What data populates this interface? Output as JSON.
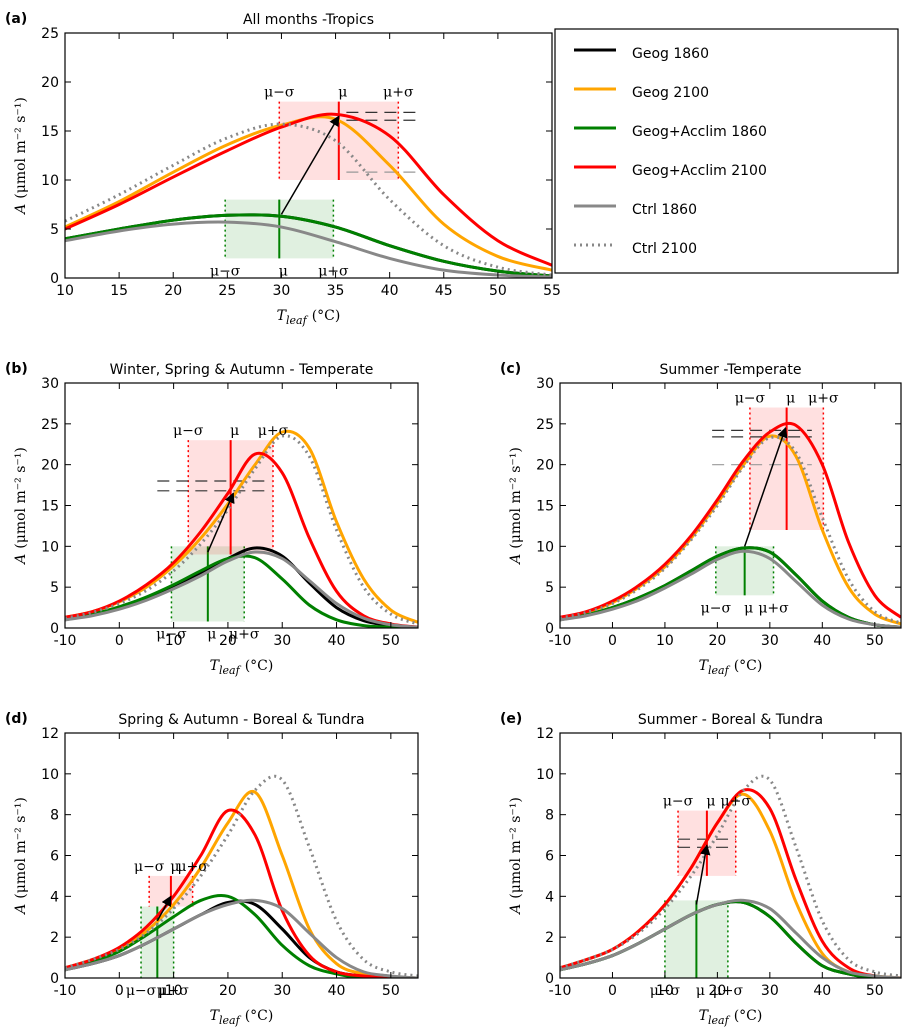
{
  "chart_data": [
    {
      "type": "line",
      "panel_label": "(a)",
      "title": "All months -Tropics",
      "xlabel": [
        "T",
        "leaf",
        "(°C)"
      ],
      "ylabel": [
        "A",
        "(μmol m⁻² s⁻¹)"
      ],
      "x": [
        10,
        15,
        20,
        25,
        30,
        35,
        40,
        45,
        50,
        55
      ],
      "xlim": [
        10,
        55
      ],
      "xticks": [
        10,
        15,
        20,
        25,
        30,
        35,
        40,
        45,
        50,
        55
      ],
      "ylim": [
        0,
        25
      ],
      "yticks": [
        0,
        5,
        10,
        15,
        20,
        25
      ],
      "legend": true,
      "series": [
        {
          "name": "Geog 1860",
          "color": "#000000",
          "style": "solid",
          "values": [
            4,
            5,
            5.9,
            6.4,
            6.3,
            5.2,
            3.3,
            1.7,
            0.7,
            0.2
          ]
        },
        {
          "name": "Geog 2100",
          "color": "#ffa500",
          "style": "solid",
          "values": [
            5.2,
            7.8,
            10.8,
            13.6,
            15.6,
            16.2,
            11.5,
            5.5,
            2.2,
            0.8
          ]
        },
        {
          "name": "Geog+Acclim 1860",
          "color": "#008000",
          "style": "solid",
          "values": [
            4,
            5,
            5.9,
            6.4,
            6.3,
            5.2,
            3.3,
            1.7,
            0.7,
            0.2
          ]
        },
        {
          "name": "Geog+Acclim 2100",
          "color": "#ff0000",
          "style": "solid",
          "values": [
            5,
            7.5,
            10.3,
            13,
            15.4,
            16.7,
            14.5,
            8.5,
            3.8,
            1.3
          ]
        },
        {
          "name": "Ctrl 1860",
          "color": "#888888",
          "style": "solid",
          "values": [
            3.8,
            4.8,
            5.5,
            5.7,
            5.2,
            3.7,
            2,
            0.8,
            0.3,
            0.1
          ]
        },
        {
          "name": "Ctrl 2100",
          "color": "#888888",
          "style": "dotted",
          "values": [
            5.8,
            8.5,
            11.5,
            14.3,
            15.7,
            14,
            8,
            3.3,
            1.1,
            0.3
          ]
        }
      ],
      "boxes": [
        {
          "color": "#008000",
          "mu": 29.8,
          "sigma": 5,
          "ylim": [
            2,
            8
          ]
        },
        {
          "color": "#ff0000",
          "mu": 35.3,
          "sigma": 5.5,
          "ylim": [
            10,
            18
          ]
        }
      ],
      "box_labels": [
        "μ−σ",
        "μ",
        "μ+σ"
      ],
      "ref_lines": [
        {
          "y": 16.9,
          "x": [
            36,
            43
          ],
          "color": "#333333"
        },
        {
          "y": 16.1,
          "x": [
            36,
            43
          ],
          "color": "#333333"
        },
        {
          "y": 10.8,
          "x": [
            36,
            43
          ],
          "color": "#999999"
        }
      ],
      "arrow": {
        "from": [
          30,
          6.5
        ],
        "to": [
          35.3,
          16.5
        ]
      }
    },
    {
      "type": "line",
      "panel_label": "(b)",
      "title": "Winter, Spring & Autumn - Temperate",
      "xlabel": [
        "T",
        "leaf",
        "(°C)"
      ],
      "ylabel": [
        "A",
        "(μmol m⁻² s⁻¹)"
      ],
      "x": [
        -10,
        -5,
        0,
        5,
        10,
        15,
        20,
        25,
        30,
        35,
        40,
        45,
        50,
        55
      ],
      "xlim": [
        -10,
        55
      ],
      "xticks": [
        -10,
        0,
        10,
        20,
        30,
        40,
        50
      ],
      "ylim": [
        0,
        30
      ],
      "yticks": [
        0,
        5,
        10,
        15,
        20,
        25,
        30
      ],
      "series": [
        {
          "name": "Geog 1860",
          "color": "#000000",
          "style": "solid",
          "values": [
            1,
            1.6,
            2.5,
            3.6,
            5,
            6.7,
            8.5,
            9.8,
            8.8,
            5.5,
            2.5,
            0.9,
            0.3,
            0.1
          ]
        },
        {
          "name": "Geog 2100",
          "color": "#ffa500",
          "style": "solid",
          "values": [
            1.3,
            2,
            3.2,
            5,
            7.6,
            11,
            15.2,
            20,
            24,
            22,
            13,
            6,
            2.2,
            0.7
          ]
        },
        {
          "name": "Geog+Acclim 1860",
          "color": "#008000",
          "style": "solid",
          "values": [
            1.1,
            1.7,
            2.6,
            3.8,
            5.3,
            7,
            8.5,
            8.6,
            6,
            2.8,
            1,
            0.3,
            0.1,
            0
          ]
        },
        {
          "name": "Geog+Acclim 2100",
          "color": "#ff0000",
          "style": "solid",
          "values": [
            1.3,
            2,
            3.3,
            5.3,
            8,
            11.8,
            16.5,
            21.3,
            19,
            11,
            4.5,
            1.5,
            0.5,
            0.1
          ]
        },
        {
          "name": "Ctrl 1860",
          "color": "#888888",
          "style": "solid",
          "values": [
            1,
            1.5,
            2.3,
            3.4,
            4.8,
            6.4,
            8.2,
            9.3,
            8.5,
            5.8,
            3,
            1.2,
            0.4,
            0.1
          ]
        },
        {
          "name": "Ctrl 2100",
          "color": "#888888",
          "style": "dotted",
          "values": [
            1.2,
            1.9,
            3,
            4.6,
            7,
            10.3,
            14.5,
            19.5,
            23.5,
            21,
            12,
            5,
            1.7,
            0.5
          ]
        }
      ],
      "boxes": [
        {
          "color": "#008000",
          "mu": 16.3,
          "sigma": 6.7,
          "ylim": [
            0.8,
            10
          ]
        },
        {
          "color": "#ff0000",
          "mu": 20.5,
          "sigma": 7.8,
          "ylim": [
            9,
            23
          ]
        }
      ],
      "box_labels": [
        "μ−σ",
        "μ",
        "μ+σ"
      ],
      "ref_lines": [
        {
          "y": 18,
          "x": [
            7,
            28
          ],
          "color": "#333333"
        },
        {
          "y": 16.8,
          "x": [
            7,
            28
          ],
          "color": "#333333"
        }
      ],
      "arrow": {
        "from": [
          16.3,
          9.3
        ],
        "to": [
          21,
          16.5
        ]
      }
    },
    {
      "type": "line",
      "panel_label": "(c)",
      "title": "Summer -Temperate",
      "xlabel": [
        "T",
        "leaf",
        "(°C)"
      ],
      "ylabel": [
        "A",
        "(μmol m⁻² s⁻¹)"
      ],
      "x": [
        -10,
        -5,
        0,
        5,
        10,
        15,
        20,
        25,
        30,
        35,
        40,
        45,
        50,
        55
      ],
      "xlim": [
        -10,
        55
      ],
      "xticks": [
        -10,
        0,
        10,
        20,
        30,
        40,
        50
      ],
      "ylim": [
        0,
        30
      ],
      "yticks": [
        0,
        5,
        10,
        15,
        20,
        25,
        30
      ],
      "series": [
        {
          "name": "Geog 1860",
          "color": "#000000",
          "style": "solid",
          "values": [
            1,
            1.6,
            2.5,
            3.7,
            5.2,
            7,
            8.8,
            9.8,
            9.3,
            6.5,
            3.3,
            1.3,
            0.4,
            0.1
          ]
        },
        {
          "name": "Geog 2100",
          "color": "#ffa500",
          "style": "solid",
          "values": [
            1.2,
            1.9,
            3.1,
            5,
            7.5,
            11,
            15.3,
            20,
            23.5,
            21,
            12,
            5,
            1.7,
            0.5
          ]
        },
        {
          "name": "Geog+Acclim 1860",
          "color": "#008000",
          "style": "solid",
          "values": [
            1,
            1.6,
            2.5,
            3.7,
            5.2,
            7,
            8.8,
            9.8,
            9.3,
            6.5,
            3.3,
            1.3,
            0.4,
            0.1
          ]
        },
        {
          "name": "Geog+Acclim 2100",
          "color": "#ff0000",
          "style": "solid",
          "values": [
            1.3,
            2,
            3.3,
            5.2,
            7.8,
            11.3,
            15.7,
            20.5,
            24,
            24.8,
            20,
            10.5,
            4,
            1.3
          ]
        },
        {
          "name": "Ctrl 1860",
          "color": "#888888",
          "style": "solid",
          "values": [
            1,
            1.5,
            2.3,
            3.4,
            4.9,
            6.6,
            8.4,
            9.4,
            8.5,
            5.7,
            2.8,
            1.1,
            0.4,
            0.1
          ]
        },
        {
          "name": "Ctrl 2100",
          "color": "#888888",
          "style": "dotted",
          "values": [
            1.2,
            1.9,
            3,
            4.8,
            7.3,
            10.8,
            15,
            19.8,
            23.3,
            21.5,
            13.5,
            6,
            2,
            0.6
          ]
        }
      ],
      "boxes": [
        {
          "color": "#008000",
          "mu": 25.2,
          "sigma": 5.5,
          "ylim": [
            4,
            10
          ]
        },
        {
          "color": "#ff0000",
          "mu": 33.2,
          "sigma": 7,
          "ylim": [
            12,
            27
          ]
        }
      ],
      "box_labels": [
        "μ−σ",
        "μ",
        "μ+σ"
      ],
      "ref_lines": [
        {
          "y": 24.2,
          "x": [
            19,
            38
          ],
          "color": "#333333"
        },
        {
          "y": 23.4,
          "x": [
            19,
            38
          ],
          "color": "#333333"
        },
        {
          "y": 20,
          "x": [
            19,
            38
          ],
          "color": "#999999"
        }
      ],
      "arrow": {
        "from": [
          25.2,
          10
        ],
        "to": [
          33,
          24.5
        ]
      }
    },
    {
      "type": "line",
      "panel_label": "(d)",
      "title": "Spring & Autumn - Boreal & Tundra",
      "xlabel": [
        "T",
        "leaf",
        "(°C)"
      ],
      "ylabel": [
        "A",
        "(μmol m⁻² s⁻¹)"
      ],
      "x": [
        -10,
        -5,
        0,
        5,
        10,
        15,
        20,
        25,
        30,
        35,
        40,
        45,
        50,
        55
      ],
      "xlim": [
        -10,
        55
      ],
      "xticks": [
        -10,
        0,
        10,
        20,
        30,
        40,
        50
      ],
      "ylim": [
        0,
        12
      ],
      "yticks": [
        0,
        2,
        4,
        6,
        8,
        10,
        12
      ],
      "series": [
        {
          "name": "Geog 1860",
          "color": "#000000",
          "style": "solid",
          "values": [
            0.4,
            0.7,
            1.1,
            1.7,
            2.4,
            3.1,
            3.7,
            3.6,
            2.4,
            1,
            0.3,
            0.1,
            0,
            0
          ]
        },
        {
          "name": "Geog 2100",
          "color": "#ffa500",
          "style": "solid",
          "values": [
            0.5,
            0.9,
            1.4,
            2.3,
            3.6,
            5.4,
            7.6,
            9.1,
            6,
            2.4,
            0.7,
            0.2,
            0.05,
            0
          ]
        },
        {
          "name": "Geog+Acclim 1860",
          "color": "#008000",
          "style": "solid",
          "values": [
            0.4,
            0.8,
            1.3,
            2.1,
            3,
            3.8,
            4,
            3.1,
            1.6,
            0.6,
            0.2,
            0,
            0,
            0
          ]
        },
        {
          "name": "Geog+Acclim 2100",
          "color": "#ff0000",
          "style": "solid",
          "values": [
            0.5,
            0.9,
            1.5,
            2.5,
            4,
            6,
            8.2,
            7,
            3.3,
            1.1,
            0.3,
            0.1,
            0,
            0
          ]
        },
        {
          "name": "Ctrl 1860",
          "color": "#888888",
          "style": "solid",
          "values": [
            0.4,
            0.7,
            1.1,
            1.7,
            2.4,
            3.1,
            3.6,
            3.8,
            3.4,
            2.2,
            1,
            0.3,
            0.1,
            0
          ]
        },
        {
          "name": "Ctrl 2100",
          "color": "#888888",
          "style": "dotted",
          "values": [
            0.5,
            0.9,
            1.4,
            2.2,
            3.4,
            5,
            7,
            9.2,
            9.7,
            6.4,
            2.8,
            0.9,
            0.3,
            0.1
          ]
        }
      ],
      "boxes": [
        {
          "color": "#008000",
          "mu": 7,
          "sigma": 3,
          "ylim": [
            0,
            3.5
          ]
        },
        {
          "color": "#ff0000",
          "mu": 9.5,
          "sigma": 4,
          "ylim": [
            3.5,
            5
          ]
        }
      ],
      "box_labels": [
        "μ−σ",
        "μ",
        "μ+σ"
      ],
      "ref_lines": [],
      "arrow": {
        "from": [
          7,
          2.8
        ],
        "to": [
          9.5,
          4
        ]
      }
    },
    {
      "type": "line",
      "panel_label": "(e)",
      "title": "Summer - Boreal & Tundra",
      "xlabel": [
        "T",
        "leaf",
        "(°C)"
      ],
      "ylabel": [
        "A",
        "(μmol m⁻² s⁻¹)"
      ],
      "x": [
        -10,
        -5,
        0,
        5,
        10,
        15,
        20,
        25,
        30,
        35,
        40,
        45,
        50,
        55
      ],
      "xlim": [
        -10,
        55
      ],
      "xticks": [
        -10,
        0,
        10,
        20,
        30,
        40,
        50
      ],
      "ylim": [
        0,
        12
      ],
      "yticks": [
        0,
        2,
        4,
        6,
        8,
        10,
        12
      ],
      "series": [
        {
          "name": "Geog 1860",
          "color": "#000000",
          "style": "solid",
          "values": [
            0.4,
            0.7,
            1.1,
            1.7,
            2.4,
            3.1,
            3.6,
            3.7,
            3,
            1.7,
            0.6,
            0.2,
            0,
            0
          ]
        },
        {
          "name": "Geog 2100",
          "color": "#ffa500",
          "style": "solid",
          "values": [
            0.5,
            0.9,
            1.4,
            2.3,
            3.6,
            5.4,
            7.6,
            9,
            7.2,
            3.7,
            1.2,
            0.3,
            0.1,
            0
          ]
        },
        {
          "name": "Geog+Acclim 1860",
          "color": "#008000",
          "style": "solid",
          "values": [
            0.4,
            0.7,
            1.1,
            1.7,
            2.4,
            3.1,
            3.6,
            3.7,
            3,
            1.7,
            0.6,
            0.2,
            0,
            0
          ]
        },
        {
          "name": "Geog+Acclim 2100",
          "color": "#ff0000",
          "style": "solid",
          "values": [
            0.5,
            0.9,
            1.4,
            2.3,
            3.6,
            5.4,
            7.6,
            9.2,
            8.3,
            4.8,
            1.8,
            0.5,
            0.1,
            0
          ]
        },
        {
          "name": "Ctrl 1860",
          "color": "#888888",
          "style": "solid",
          "values": [
            0.4,
            0.7,
            1.1,
            1.7,
            2.4,
            3.1,
            3.6,
            3.8,
            3.4,
            2.2,
            1,
            0.3,
            0.1,
            0
          ]
        },
        {
          "name": "Ctrl 2100",
          "color": "#888888",
          "style": "dotted",
          "values": [
            0.5,
            0.9,
            1.4,
            2.2,
            3.4,
            5,
            7,
            9.2,
            9.7,
            6.4,
            2.8,
            0.9,
            0.3,
            0.1
          ]
        }
      ],
      "boxes": [
        {
          "color": "#008000",
          "mu": 16,
          "sigma": 6,
          "ylim": [
            0,
            3.8
          ]
        },
        {
          "color": "#ff0000",
          "mu": 18,
          "sigma": 5.5,
          "ylim": [
            5,
            8.2
          ]
        }
      ],
      "box_labels": [
        "μ−σ",
        "μ",
        "μ+σ"
      ],
      "ref_lines": [
        {
          "y": 6.8,
          "x": [
            12.5,
            23.5
          ],
          "color": "#333333"
        },
        {
          "y": 6.4,
          "x": [
            12.5,
            23.5
          ],
          "color": "#333333"
        }
      ],
      "arrow": {
        "from": [
          16,
          3.6
        ],
        "to": [
          18,
          6.5
        ]
      }
    }
  ]
}
